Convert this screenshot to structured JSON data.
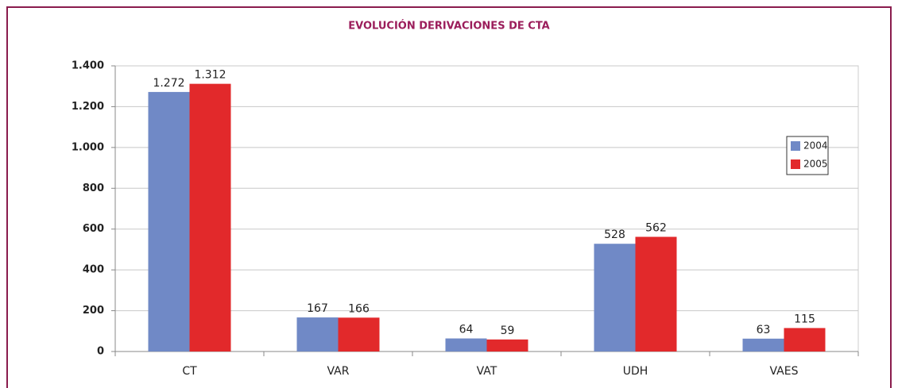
{
  "chart_data": {
    "type": "bar",
    "title": "EVOLUCIÓN DERIVACIONES DE CTA",
    "categories": [
      "CT",
      "VAR",
      "VAT",
      "UDH",
      "VAES"
    ],
    "series": [
      {
        "name": "2004",
        "color": "#7089c6",
        "values": [
          1272,
          167,
          64,
          528,
          63
        ],
        "value_labels": [
          "1.272",
          "167",
          "64",
          "528",
          "63"
        ]
      },
      {
        "name": "2005",
        "color": "#e2292b",
        "values": [
          1312,
          166,
          59,
          562,
          115
        ],
        "value_labels": [
          "1.312",
          "166",
          "59",
          "562",
          "115"
        ]
      }
    ],
    "ylim": [
      0,
      1400
    ],
    "yticks": [
      0,
      200,
      400,
      600,
      800,
      {
        "value": 1000,
        "label": "1.000"
      },
      {
        "value": 1200,
        "label": "1.200"
      },
      {
        "value": 1400,
        "label": "1.400"
      }
    ],
    "grid": true,
    "legend": "right"
  }
}
